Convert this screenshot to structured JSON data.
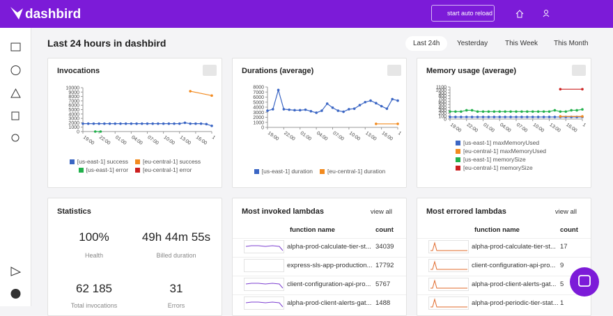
{
  "brand": "dashbird",
  "topbar": {
    "auto_reload": "start auto reload"
  },
  "header": {
    "title": "Last 24 hours in dashbird",
    "tabs": [
      "Last 24h",
      "Yesterday",
      "This Week",
      "This Month"
    ],
    "selected_tab": 0
  },
  "charts": [
    {
      "type": "line",
      "title": "Invocations",
      "ylim": [
        0,
        10000
      ],
      "yticks": [
        0,
        1000,
        2000,
        3000,
        4000,
        5000,
        6000,
        7000,
        8000,
        9000,
        10000
      ],
      "xlim": [
        0,
        24
      ],
      "xticks": [
        {
          "value": 0,
          "label": "19:00"
        },
        {
          "value": 3,
          "label": "22:00"
        },
        {
          "value": 6,
          "label": "01:00"
        },
        {
          "value": 9,
          "label": "04:00"
        },
        {
          "value": 12,
          "label": "07:00"
        },
        {
          "value": 15,
          "label": "10:00"
        },
        {
          "value": 18,
          "label": "13:00"
        },
        {
          "value": 21,
          "label": "16:00"
        },
        {
          "value": 24,
          "label": "1"
        }
      ],
      "series": [
        {
          "name": "[us-east-1] success",
          "color": "#3b66c4",
          "x": [
            0,
            1,
            2,
            3,
            4,
            5,
            6,
            7,
            8,
            9,
            10,
            11,
            12,
            13,
            14,
            15,
            16,
            17,
            18,
            19,
            20,
            21,
            22,
            23,
            24
          ],
          "values": [
            1800,
            1800,
            1800,
            1800,
            1800,
            1800,
            1800,
            1800,
            1800,
            1800,
            1800,
            1800,
            1800,
            1800,
            1800,
            1800,
            1800,
            1800,
            1800,
            2000,
            1800,
            1800,
            1800,
            1700,
            1300
          ]
        },
        {
          "name": "[eu-central-1] success",
          "color": "#f28a1e",
          "x": [
            20,
            24
          ],
          "values": [
            9200,
            8200
          ]
        },
        {
          "name": "[us-east-1] error",
          "color": "#22b14c",
          "x": [
            2.3,
            3.3
          ],
          "values": [
            0,
            0
          ]
        },
        {
          "name": "[eu-central-1] error",
          "color": "#cc1f1f",
          "x": [],
          "values": []
        }
      ]
    },
    {
      "type": "line",
      "title": "Durations (average)",
      "ylim": [
        0,
        8000
      ],
      "yticks": [
        0,
        1000,
        2000,
        3000,
        4000,
        5000,
        6000,
        7000,
        8000
      ],
      "xlim": [
        0,
        24
      ],
      "xticks": [
        {
          "value": 0,
          "label": "19:00"
        },
        {
          "value": 3,
          "label": "22:00"
        },
        {
          "value": 6,
          "label": "01:00"
        },
        {
          "value": 9,
          "label": "04:00"
        },
        {
          "value": 12,
          "label": "07:00"
        },
        {
          "value": 15,
          "label": "10:00"
        },
        {
          "value": 18,
          "label": "13:00"
        },
        {
          "value": 21,
          "label": "16:00"
        },
        {
          "value": 24,
          "label": "1"
        }
      ],
      "series": [
        {
          "name": "[us-east-1] duration",
          "color": "#3b66c4",
          "x": [
            0,
            1,
            2,
            3,
            4,
            5,
            6,
            7,
            8,
            9,
            10,
            11,
            12,
            13,
            14,
            15,
            16,
            17,
            18,
            19,
            20,
            21,
            22,
            23,
            24
          ],
          "values": [
            3300,
            3600,
            7400,
            3600,
            3500,
            3400,
            3400,
            3500,
            3200,
            2900,
            3300,
            4700,
            3900,
            3300,
            3100,
            3600,
            3700,
            4400,
            5000,
            5300,
            4800,
            4200,
            3700,
            5600,
            5300
          ]
        },
        {
          "name": "[eu-central-1] duration",
          "color": "#f28a1e",
          "x": [
            20,
            24
          ],
          "values": [
            700,
            700
          ]
        }
      ]
    },
    {
      "type": "line",
      "title": "Memory usage (average)",
      "ylim": [
        0,
        1100
      ],
      "yticks": [
        0,
        100,
        200,
        300,
        400,
        500,
        600,
        700,
        800,
        900,
        1000,
        1100
      ],
      "xlim": [
        0,
        24
      ],
      "xticks": [
        {
          "value": 0,
          "label": "19:00"
        },
        {
          "value": 3,
          "label": "22:00"
        },
        {
          "value": 6,
          "label": "01:00"
        },
        {
          "value": 9,
          "label": "04:00"
        },
        {
          "value": 12,
          "label": "07:00"
        },
        {
          "value": 15,
          "label": "10:00"
        },
        {
          "value": 18,
          "label": "13:00"
        },
        {
          "value": 21,
          "label": "16:00"
        },
        {
          "value": 24,
          "label": "1"
        }
      ],
      "series": [
        {
          "name": "[us-east-1] maxMemoryUsed",
          "color": "#3b66c4",
          "x": [
            0,
            1,
            2,
            3,
            4,
            5,
            6,
            7,
            8,
            9,
            10,
            11,
            12,
            13,
            14,
            15,
            16,
            17,
            18,
            19,
            20,
            21,
            22,
            23,
            24
          ],
          "values": [
            70,
            70,
            70,
            70,
            70,
            70,
            70,
            70,
            70,
            70,
            70,
            70,
            70,
            70,
            70,
            70,
            70,
            70,
            70,
            70,
            70,
            70,
            70,
            70,
            70
          ]
        },
        {
          "name": "[eu-central-1] maxMemoryUsed",
          "color": "#f28a1e",
          "x": [
            20,
            24
          ],
          "values": [
            90,
            90
          ]
        },
        {
          "name": "[us-east-1] memorySize",
          "color": "#22b14c",
          "x": [
            0,
            1,
            2,
            3,
            4,
            5,
            6,
            7,
            8,
            9,
            10,
            11,
            12,
            13,
            14,
            15,
            16,
            17,
            18,
            19,
            20,
            21,
            22,
            23,
            24
          ],
          "values": [
            256,
            256,
            256,
            300,
            300,
            256,
            256,
            256,
            256,
            256,
            256,
            256,
            256,
            256,
            256,
            256,
            256,
            256,
            256,
            300,
            256,
            256,
            300,
            300,
            330
          ]
        },
        {
          "name": "[eu-central-1] memorySize",
          "color": "#cc1f1f",
          "x": [
            20,
            24
          ],
          "values": [
            1024,
            1024
          ]
        }
      ]
    }
  ],
  "statistics": {
    "title": "Statistics",
    "items": [
      {
        "value": "100%",
        "label": "Health"
      },
      {
        "value": "49h 44m 55s",
        "label": "Billed duration"
      },
      {
        "value": "62 185",
        "label": "Total invocations"
      },
      {
        "value": "31",
        "label": "Errors"
      }
    ]
  },
  "most_invoked": {
    "title": "Most invoked lambdas",
    "view_all": "view all",
    "columns": [
      "function name",
      "count"
    ],
    "rows": [
      [
        "alpha-prod-calculate-tier-st...",
        34039
      ],
      [
        "express-sls-app-production...",
        17792
      ],
      [
        "client-configuration-api-pro...",
        5767
      ],
      [
        "alpha-prod-client-alerts-gat...",
        1488
      ]
    ]
  },
  "most_errored": {
    "title": "Most errored lambdas",
    "view_all": "view all",
    "columns": [
      "function name",
      "count"
    ],
    "rows": [
      [
        "alpha-prod-calculate-tier-st...",
        17
      ],
      [
        "client-configuration-api-pro...",
        9
      ],
      [
        "alpha-prod-client-alerts-gat...",
        5
      ],
      [
        "alpha-prod-periodic-tier-stat...",
        1
      ]
    ]
  }
}
